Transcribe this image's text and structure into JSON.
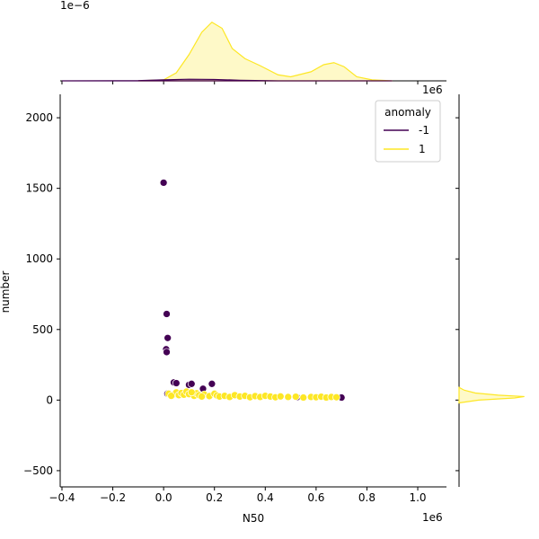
{
  "chart_data": {
    "type": "scatter",
    "x_label": "N50",
    "y_label": "number",
    "x_offset": "1e6",
    "xlim": [
      -0.407,
      1.113
    ],
    "ylim": [
      -615,
      2166
    ],
    "xticks": [
      {
        "value": -0.4,
        "label": "−0.4"
      },
      {
        "value": -0.2,
        "label": "−0.2"
      },
      {
        "value": 0,
        "label": "0.0"
      },
      0.2,
      0.4,
      0.6,
      0.8,
      {
        "value": 1,
        "label": "1.0"
      }
    ],
    "yticks": [
      {
        "value": -500,
        "label": "−500"
      },
      0,
      500,
      1000,
      1500,
      2000
    ],
    "legend_title": "anomaly",
    "legend_loc": "upper right",
    "series": [
      {
        "name": "-1",
        "color": "#440154",
        "x": [
          0.0,
          0.012,
          0.016,
          0.01,
          0.012,
          0.015,
          0.04,
          0.05,
          0.1,
          0.11,
          0.19,
          0.155,
          0.525,
          0.7
        ],
        "y": [
          1540,
          610,
          440,
          360,
          340,
          45,
          125,
          120,
          108,
          115,
          115,
          80,
          20,
          18
        ]
      },
      {
        "name": "1",
        "color": "#fde725",
        "x": [
          0.02,
          0.04,
          0.05,
          0.06,
          0.07,
          0.08,
          0.09,
          0.1,
          0.12,
          0.13,
          0.14,
          0.16,
          0.18,
          0.2,
          0.21,
          0.22,
          0.24,
          0.26,
          0.28,
          0.3,
          0.32,
          0.34,
          0.36,
          0.38,
          0.4,
          0.42,
          0.44,
          0.46,
          0.49,
          0.52,
          0.55,
          0.58,
          0.6,
          0.62,
          0.64,
          0.66,
          0.68,
          0.03,
          0.11,
          0.15
        ],
        "y": [
          45,
          40,
          55,
          35,
          50,
          38,
          60,
          42,
          30,
          48,
          35,
          40,
          28,
          45,
          32,
          25,
          30,
          22,
          35,
          25,
          30,
          20,
          28,
          22,
          30,
          25,
          20,
          26,
          22,
          24,
          18,
          22,
          20,
          24,
          18,
          22,
          20,
          30,
          55,
          25
        ]
      }
    ],
    "top_kde": {
      "offset": "1e−6",
      "ylim": [
        0,
        3.2
      ],
      "series": [
        {
          "color": "#fde725",
          "x": [
            -0.1,
            0.0,
            0.05,
            0.1,
            0.15,
            0.19,
            0.23,
            0.27,
            0.32,
            0.38,
            0.45,
            0.5,
            0.58,
            0.63,
            0.67,
            0.71,
            0.76,
            0.82,
            0.9
          ],
          "y": [
            0,
            0.05,
            0.4,
            1.3,
            2.4,
            2.9,
            2.6,
            1.6,
            1.1,
            0.75,
            0.3,
            0.2,
            0.45,
            0.8,
            0.9,
            0.7,
            0.2,
            0.05,
            0
          ]
        },
        {
          "color": "#440154",
          "x": [
            -0.4,
            -0.1,
            0.0,
            0.1,
            0.2,
            0.3,
            0.45,
            0.9
          ],
          "y": [
            0,
            0.01,
            0.05,
            0.08,
            0.07,
            0.03,
            0,
            0
          ]
        }
      ]
    },
    "right_kde": {
      "offset": "1e6",
      "xlim": [
        0,
        1.1
      ],
      "series": [
        {
          "color": "#fde725",
          "y": [
            -20,
            0,
            15,
            25,
            35,
            50,
            70,
            90
          ],
          "density": [
            0,
            0.3,
            0.85,
            1.0,
            0.6,
            0.25,
            0.08,
            0
          ]
        }
      ]
    }
  }
}
